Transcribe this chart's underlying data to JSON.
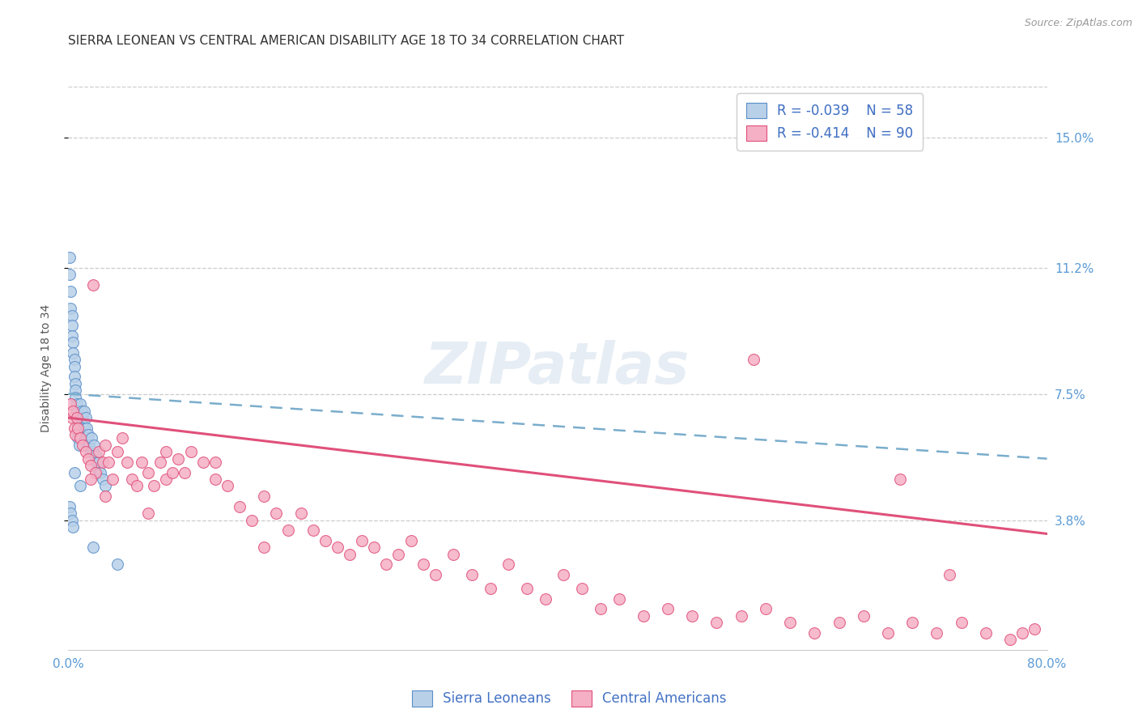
{
  "title": "SIERRA LEONEAN VS CENTRAL AMERICAN DISABILITY AGE 18 TO 34 CORRELATION CHART",
  "source": "Source: ZipAtlas.com",
  "ylabel": "Disability Age 18 to 34",
  "xlim": [
    0.0,
    0.8
  ],
  "ylim": [
    0.0,
    0.165
  ],
  "xticks": [
    0.0,
    0.8
  ],
  "xticklabels": [
    "0.0%",
    "80.0%"
  ],
  "ytick_positions": [
    0.038,
    0.075,
    0.112,
    0.15
  ],
  "ytick_labels": [
    "3.8%",
    "7.5%",
    "11.2%",
    "15.0%"
  ],
  "legend_r1": "R = -0.039",
  "legend_n1": "N = 58",
  "legend_r2": "R = -0.414",
  "legend_n2": "N = 90",
  "color_blue_fill": "#b8d0e8",
  "color_blue_edge": "#5b8fc9",
  "color_pink_fill": "#f5b0c5",
  "color_pink_edge": "#e0507a",
  "color_blue_text": "#4472c4",
  "color_axis_labels": "#5b9bd5",
  "watermark_text": "ZIPatlas",
  "grid_color": "#cccccc",
  "background_color": "#ffffff",
  "title_fontsize": 11,
  "label_fontsize": 10,
  "tick_fontsize": 11,
  "trend_blue_x0": 0.0,
  "trend_blue_y0": 0.075,
  "trend_blue_x1": 0.8,
  "trend_blue_y1": 0.056,
  "trend_pink_x0": 0.0,
  "trend_pink_y0": 0.068,
  "trend_pink_x1": 0.8,
  "trend_pink_y1": 0.034,
  "sierra_x": [
    0.001,
    0.001,
    0.002,
    0.002,
    0.003,
    0.003,
    0.003,
    0.004,
    0.004,
    0.005,
    0.005,
    0.005,
    0.006,
    0.006,
    0.006,
    0.007,
    0.007,
    0.007,
    0.008,
    0.008,
    0.008,
    0.009,
    0.009,
    0.01,
    0.01,
    0.01,
    0.011,
    0.011,
    0.012,
    0.012,
    0.013,
    0.013,
    0.014,
    0.014,
    0.015,
    0.015,
    0.016,
    0.016,
    0.017,
    0.018,
    0.019,
    0.02,
    0.021,
    0.022,
    0.023,
    0.024,
    0.025,
    0.026,
    0.028,
    0.03,
    0.001,
    0.002,
    0.003,
    0.004,
    0.005,
    0.01,
    0.02,
    0.04
  ],
  "sierra_y": [
    0.115,
    0.11,
    0.105,
    0.1,
    0.098,
    0.095,
    0.092,
    0.09,
    0.087,
    0.085,
    0.083,
    0.08,
    0.078,
    0.076,
    0.074,
    0.072,
    0.07,
    0.068,
    0.066,
    0.064,
    0.062,
    0.06,
    0.065,
    0.063,
    0.068,
    0.072,
    0.07,
    0.066,
    0.063,
    0.068,
    0.07,
    0.065,
    0.063,
    0.068,
    0.065,
    0.062,
    0.06,
    0.063,
    0.06,
    0.058,
    0.062,
    0.058,
    0.06,
    0.057,
    0.055,
    0.053,
    0.055,
    0.052,
    0.05,
    0.048,
    0.042,
    0.04,
    0.038,
    0.036,
    0.052,
    0.048,
    0.03,
    0.025
  ],
  "central_x": [
    0.002,
    0.003,
    0.004,
    0.005,
    0.006,
    0.007,
    0.008,
    0.01,
    0.012,
    0.014,
    0.016,
    0.018,
    0.02,
    0.022,
    0.025,
    0.028,
    0.03,
    0.033,
    0.036,
    0.04,
    0.044,
    0.048,
    0.052,
    0.056,
    0.06,
    0.065,
    0.07,
    0.075,
    0.08,
    0.085,
    0.09,
    0.095,
    0.1,
    0.11,
    0.12,
    0.13,
    0.14,
    0.15,
    0.16,
    0.17,
    0.18,
    0.19,
    0.2,
    0.21,
    0.22,
    0.23,
    0.24,
    0.25,
    0.26,
    0.27,
    0.28,
    0.29,
    0.3,
    0.315,
    0.33,
    0.345,
    0.36,
    0.375,
    0.39,
    0.405,
    0.42,
    0.435,
    0.45,
    0.47,
    0.49,
    0.51,
    0.53,
    0.55,
    0.57,
    0.59,
    0.61,
    0.63,
    0.65,
    0.67,
    0.69,
    0.71,
    0.73,
    0.75,
    0.77,
    0.79,
    0.018,
    0.56,
    0.68,
    0.72,
    0.78,
    0.03,
    0.065,
    0.08,
    0.12,
    0.16
  ],
  "central_y": [
    0.072,
    0.068,
    0.07,
    0.065,
    0.063,
    0.068,
    0.065,
    0.062,
    0.06,
    0.058,
    0.056,
    0.054,
    0.107,
    0.052,
    0.058,
    0.055,
    0.06,
    0.055,
    0.05,
    0.058,
    0.062,
    0.055,
    0.05,
    0.048,
    0.055,
    0.052,
    0.048,
    0.055,
    0.05,
    0.052,
    0.056,
    0.052,
    0.058,
    0.055,
    0.05,
    0.048,
    0.042,
    0.038,
    0.045,
    0.04,
    0.035,
    0.04,
    0.035,
    0.032,
    0.03,
    0.028,
    0.032,
    0.03,
    0.025,
    0.028,
    0.032,
    0.025,
    0.022,
    0.028,
    0.022,
    0.018,
    0.025,
    0.018,
    0.015,
    0.022,
    0.018,
    0.012,
    0.015,
    0.01,
    0.012,
    0.01,
    0.008,
    0.01,
    0.012,
    0.008,
    0.005,
    0.008,
    0.01,
    0.005,
    0.008,
    0.005,
    0.008,
    0.005,
    0.003,
    0.006,
    0.05,
    0.085,
    0.05,
    0.022,
    0.005,
    0.045,
    0.04,
    0.058,
    0.055,
    0.03
  ]
}
